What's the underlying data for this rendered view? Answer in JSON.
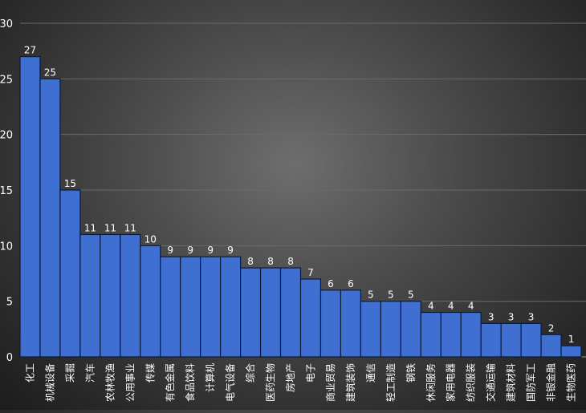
{
  "chart_data": {
    "type": "bar",
    "title": "",
    "xlabel": "",
    "ylabel": "",
    "ylim": [
      0,
      30
    ],
    "yticks": [
      0,
      5,
      10,
      15,
      20,
      25,
      30
    ],
    "grid": "horizontal",
    "bar_color": "#3f6fd1",
    "bar_edge_color": "#0c1a3a",
    "categories": [
      "化工",
      "机械设备",
      "采掘",
      "汽车",
      "农林牧渔",
      "公用事业",
      "传媒",
      "有色金属",
      "食品饮料",
      "计算机",
      "电气设备",
      "综合",
      "医药生物",
      "房地产",
      "电子",
      "商业贸易",
      "建筑装饰",
      "通信",
      "轻工制造",
      "钢铁",
      "休闲服务",
      "家用电器",
      "纺织服装",
      "交通运输",
      "建筑材料",
      "国防军工",
      "非银金融",
      "生物医药"
    ],
    "values": [
      27,
      25,
      15,
      11,
      11,
      11,
      10,
      9,
      9,
      9,
      9,
      8,
      8,
      8,
      7,
      6,
      6,
      5,
      5,
      5,
      4,
      4,
      4,
      3,
      3,
      3,
      2,
      1
    ]
  }
}
